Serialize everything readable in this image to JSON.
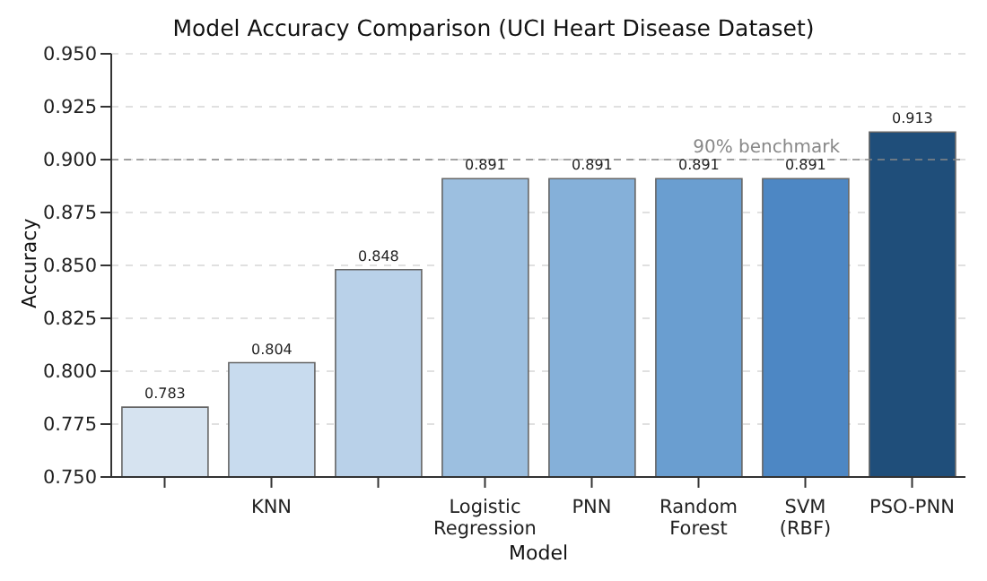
{
  "chart_data": {
    "type": "bar",
    "title": "Model Accuracy Comparison (UCI Heart Disease Dataset)",
    "xlabel": "Model",
    "ylabel": "Accuracy",
    "categories": [
      null,
      "KNN",
      null,
      "Logistic Regression",
      "PNN",
      "Random Forest",
      "SVM (RBF)",
      "PSO-PNN"
    ],
    "values": [
      0.783,
      0.804,
      0.848,
      0.891,
      0.891,
      0.891,
      0.891,
      0.913
    ],
    "colors": [
      "#d6e3f0",
      "#c8dbee",
      "#b9d1e9",
      "#9cbfe0",
      "#85b0d9",
      "#6a9ed0",
      "#4d87c4",
      "#1f4e7a"
    ],
    "ylim": [
      0.75,
      0.95
    ],
    "yticks": [
      {
        "value": 0.75,
        "label": "0.750"
      },
      {
        "value": 0.775,
        "label": "0.775"
      },
      {
        "value": 0.8,
        "label": "0.800"
      },
      {
        "value": 0.825,
        "label": "0.825"
      },
      {
        "value": 0.85,
        "label": "0.850"
      },
      {
        "value": 0.875,
        "label": "0.875"
      },
      {
        "value": 0.9,
        "label": "0.900"
      },
      {
        "value": 0.925,
        "label": "0.925"
      },
      {
        "value": 0.95,
        "label": "0.950"
      }
    ],
    "grid": "y",
    "data_labels": true,
    "ref_lines": [
      {
        "axis": "y",
        "value": 0.9,
        "label": "90% benchmark",
        "color": "#888888",
        "line_style": "dashed"
      }
    ]
  }
}
